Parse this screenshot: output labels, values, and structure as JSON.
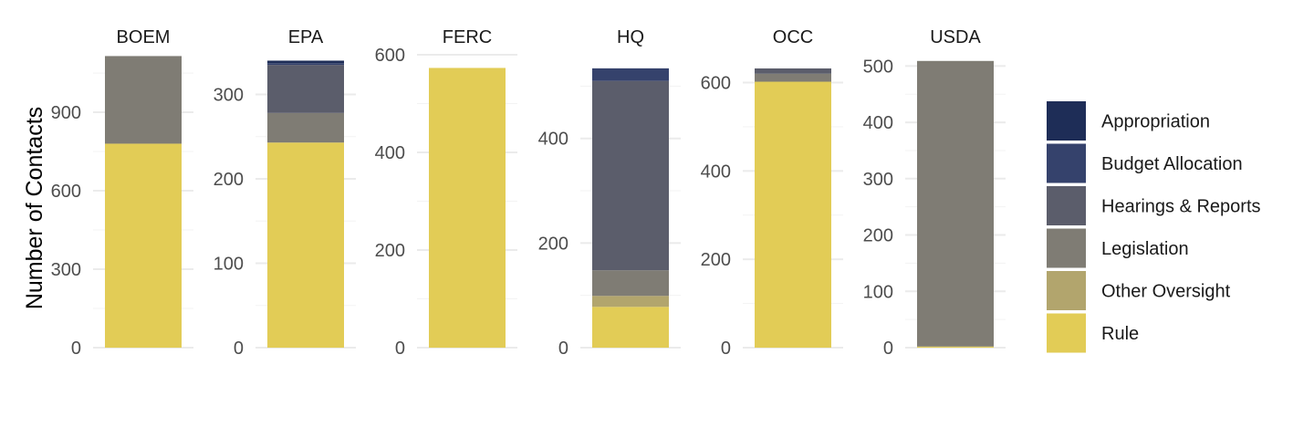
{
  "chart_data": {
    "type": "bar",
    "stacked": true,
    "facet_free_y": true,
    "ylabel": "Number of Contacts",
    "xlabel": "",
    "grid": true,
    "legend_position": "right",
    "colors": {
      "Appropriation": "#1e2d57",
      "Budget Allocation": "#35426c",
      "Hearings & Reports": "#5b5d6b",
      "Legislation": "#7f7c74",
      "Other Oversight": "#b2a56d",
      "Rule": "#e2cc56"
    },
    "series_order": [
      "Rule",
      "Other Oversight",
      "Legislation",
      "Hearings & Reports",
      "Budget Allocation",
      "Appropriation"
    ],
    "legend": {
      "entries": [
        "Appropriation",
        "Budget Allocation",
        "Hearings & Reports",
        "Legislation",
        "Other Oversight",
        "Rule"
      ]
    },
    "panels": [
      {
        "name": "BOEM",
        "ylim": [
          0,
          1120
        ],
        "ticks": [
          0,
          300,
          600,
          900
        ],
        "tick_labels": [
          "0",
          "300",
          "600",
          "900"
        ],
        "values": {
          "Rule": 780,
          "Other Oversight": 0,
          "Legislation": 335,
          "Hearings & Reports": 0,
          "Budget Allocation": 0,
          "Appropriation": 0
        }
      },
      {
        "name": "EPA",
        "ylim": [
          0,
          347
        ],
        "ticks": [
          0,
          100,
          200,
          300
        ],
        "tick_labels": [
          "0",
          "100",
          "200",
          "300"
        ],
        "values": {
          "Rule": 243,
          "Other Oversight": 0,
          "Legislation": 35,
          "Hearings & Reports": 57,
          "Budget Allocation": 2,
          "Appropriation": 3
        }
      },
      {
        "name": "FERC",
        "ylim": [
          0,
          600
        ],
        "ticks": [
          0,
          200,
          400,
          600
        ],
        "tick_labels": [
          "0",
          "200",
          "400",
          "600"
        ],
        "values": {
          "Rule": 573,
          "Other Oversight": 0,
          "Legislation": 0,
          "Hearings & Reports": 0,
          "Budget Allocation": 0,
          "Appropriation": 0
        }
      },
      {
        "name": "HQ",
        "ylim": [
          0,
          560
        ],
        "ticks": [
          0,
          200,
          400
        ],
        "tick_labels": [
          "0",
          "200",
          "400"
        ],
        "values": {
          "Rule": 78,
          "Other Oversight": 21,
          "Legislation": 49,
          "Hearings & Reports": 362,
          "Budget Allocation": 24,
          "Appropriation": 0
        }
      },
      {
        "name": "OCC",
        "ylim": [
          0,
          663
        ],
        "ticks": [
          0,
          200,
          400,
          600
        ],
        "tick_labels": [
          "0",
          "200",
          "400",
          "600"
        ],
        "values": {
          "Rule": 602,
          "Other Oversight": 0,
          "Legislation": 18,
          "Hearings & Reports": 12,
          "Budget Allocation": 0,
          "Appropriation": 0
        }
      },
      {
        "name": "USDA",
        "ylim": [
          0,
          520
        ],
        "ticks": [
          0,
          100,
          200,
          300,
          400,
          500
        ],
        "tick_labels": [
          "0",
          "100",
          "200",
          "300",
          "400",
          "500"
        ],
        "values": {
          "Rule": 2,
          "Other Oversight": 0,
          "Legislation": 507,
          "Hearings & Reports": 0,
          "Budget Allocation": 0,
          "Appropriation": 0
        }
      }
    ]
  }
}
